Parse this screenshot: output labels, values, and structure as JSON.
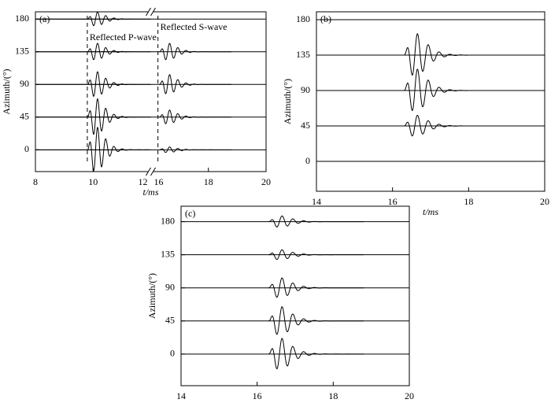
{
  "chart_data": [
    {
      "type": "line",
      "label": "(a)",
      "ylabel": "Azimuth/(°)",
      "xlabel": "t/ms",
      "xlim": [
        8,
        20
      ],
      "xticks": [
        8,
        10,
        12,
        16,
        18,
        20
      ],
      "axis_break": [
        12,
        16
      ],
      "ylim": [
        -30,
        190
      ],
      "yticks": [
        0,
        45,
        90,
        135,
        180
      ],
      "vlines": [
        9.8,
        16.25
      ],
      "annotations": [
        "Reflected P-wave",
        "Reflected S-wave"
      ],
      "color": "#000000",
      "series": [
        {
          "baseline": 0,
          "arrivals": [
            {
              "t": 9.8,
              "amplitude": 32
            },
            {
              "t": 16.3,
              "amplitude": 4
            }
          ]
        },
        {
          "baseline": 45,
          "arrivals": [
            {
              "t": 9.8,
              "amplitude": 26
            },
            {
              "t": 16.3,
              "amplitude": 10
            }
          ]
        },
        {
          "baseline": 90,
          "arrivals": [
            {
              "t": 9.8,
              "amplitude": 18
            },
            {
              "t": 16.3,
              "amplitude": 14
            }
          ]
        },
        {
          "baseline": 135,
          "arrivals": [
            {
              "t": 9.8,
              "amplitude": 12
            },
            {
              "t": 16.3,
              "amplitude": 12
            }
          ]
        },
        {
          "baseline": 180,
          "arrivals": [
            {
              "t": 9.8,
              "amplitude": 10
            }
          ]
        }
      ]
    },
    {
      "type": "line",
      "label": "(b)",
      "ylabel": "Azimuth/(°)",
      "xlabel": "t/ms",
      "xlim": [
        14,
        20
      ],
      "xticks": [
        14,
        16,
        18,
        20
      ],
      "ylim": [
        -38,
        190
      ],
      "yticks": [
        0,
        45,
        90,
        135,
        180
      ],
      "color": "#000000",
      "series": [
        {
          "baseline": 0,
          "arrivals": []
        },
        {
          "baseline": 45,
          "arrivals": [
            {
              "t": 16.3,
              "amplitude": 14
            }
          ]
        },
        {
          "baseline": 90,
          "arrivals": [
            {
              "t": 16.3,
              "amplitude": 28
            }
          ]
        },
        {
          "baseline": 135,
          "arrivals": [
            {
              "t": 16.3,
              "amplitude": 28
            }
          ]
        },
        {
          "baseline": 180,
          "arrivals": []
        }
      ]
    },
    {
      "type": "line",
      "label": "(c)",
      "ylabel": "Azimuth/(°)",
      "xlabel": "t/ms",
      "xlim": [
        14,
        20
      ],
      "xticks": [
        14,
        16,
        18,
        20
      ],
      "ylim": [
        -43,
        201
      ],
      "yticks": [
        0,
        45,
        90,
        135,
        180
      ],
      "color": "#000000",
      "series": [
        {
          "baseline": 0,
          "arrivals": [
            {
              "t": 16.3,
              "amplitude": 22
            }
          ]
        },
        {
          "baseline": 45,
          "arrivals": [
            {
              "t": 16.3,
              "amplitude": 20
            }
          ]
        },
        {
          "baseline": 90,
          "arrivals": [
            {
              "t": 16.3,
              "amplitude": 14
            }
          ]
        },
        {
          "baseline": 135,
          "arrivals": [
            {
              "t": 16.3,
              "amplitude": 7
            }
          ]
        },
        {
          "baseline": 180,
          "arrivals": [
            {
              "t": 16.3,
              "amplitude": 8
            }
          ]
        }
      ]
    }
  ]
}
